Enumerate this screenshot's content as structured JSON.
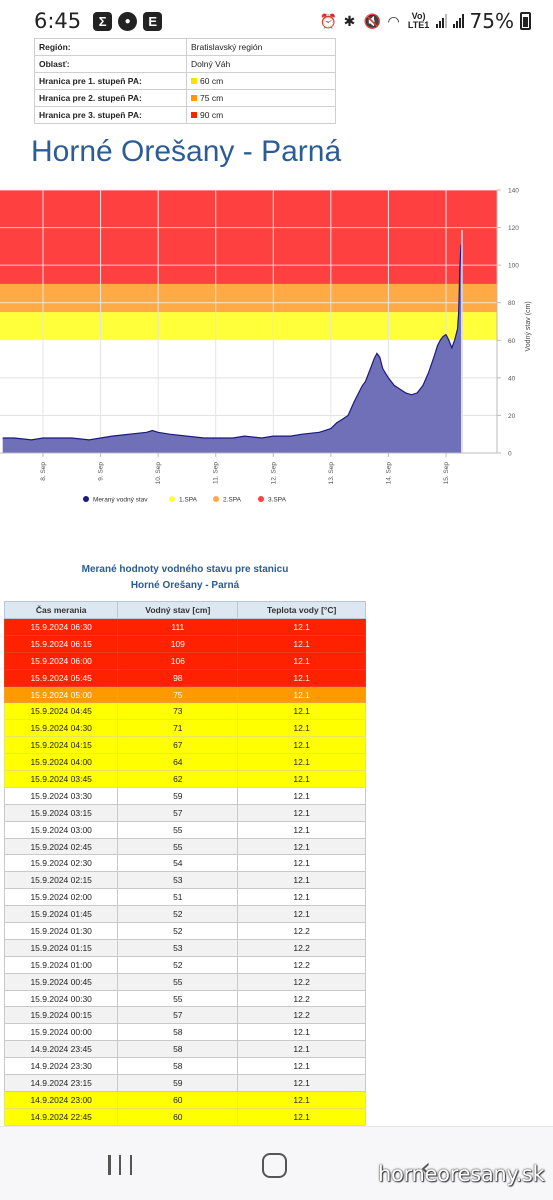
{
  "status_bar": {
    "time": "6:45",
    "notification_icons": [
      "Σ",
      "💬",
      "E"
    ],
    "network_label": "Vo) LTE1",
    "battery_percent": "75%"
  },
  "info_table": [
    {
      "label": "Región:",
      "value": "Bratislavský región",
      "swatch": ""
    },
    {
      "label": "Oblasť:",
      "value": "Dolný Váh",
      "swatch": ""
    },
    {
      "label": "Hranica pre 1. stupeň PA:",
      "value": "60 cm",
      "swatch": "#ffe000"
    },
    {
      "label": "Hranica pre 2. stupeň PA:",
      "value": "75 cm",
      "swatch": "#ff9900"
    },
    {
      "label": "Hranica pre 3. stupeň PA:",
      "value": "90 cm",
      "swatch": "#ff2200"
    }
  ],
  "station_title": "Horné Orešany - Parná",
  "chart_data": {
    "type": "area",
    "ylabel": "Vodný stav (cm)",
    "ylim": [
      0,
      140
    ],
    "yticks": [
      0,
      20,
      40,
      60,
      80,
      100,
      120,
      140
    ],
    "xticks": [
      "8. Sep",
      "9. Sep",
      "10. Sep",
      "11. Sep",
      "12. Sep",
      "13. Sep",
      "14. Sep",
      "15. Sep"
    ],
    "bands": [
      {
        "name": "1.SPA",
        "from": 60,
        "to": 75,
        "color": "#ffff3a"
      },
      {
        "name": "2.SPA",
        "from": 75,
        "to": 90,
        "color": "#ffaa44"
      },
      {
        "name": "3.SPA",
        "from": 90,
        "to": 140,
        "color": "#ff4040"
      }
    ],
    "series": [
      {
        "name": "Meraný vodný stav",
        "color": "#1a1a80",
        "fill": "#7070b8",
        "x": [
          7.3,
          7.5,
          7.8,
          8.0,
          8.3,
          8.5,
          8.8,
          9.0,
          9.2,
          9.5,
          9.8,
          9.9,
          10.0,
          10.2,
          10.5,
          10.8,
          11.0,
          11.3,
          11.5,
          11.8,
          12.0,
          12.3,
          12.5,
          12.8,
          13.0,
          13.1,
          13.2,
          13.3,
          13.4,
          13.5,
          13.55,
          13.6,
          13.65,
          13.7,
          13.75,
          13.8,
          13.85,
          13.9,
          14.0,
          14.1,
          14.2,
          14.3,
          14.4,
          14.5,
          14.6,
          14.7,
          14.8,
          14.85,
          14.9,
          14.95,
          15.0,
          15.05,
          15.1,
          15.15,
          15.2,
          15.22,
          15.24,
          15.26
        ],
        "values": [
          8,
          8,
          7,
          8,
          8,
          8,
          7,
          8,
          9,
          10,
          11,
          12,
          11,
          10,
          9,
          8,
          8,
          8,
          9,
          8,
          9,
          9,
          10,
          11,
          13,
          16,
          18,
          20,
          27,
          33,
          36,
          38,
          42,
          46,
          50,
          53,
          51,
          45,
          40,
          36,
          34,
          32,
          31,
          32,
          36,
          43,
          52,
          57,
          60,
          62,
          63,
          60,
          56,
          60,
          66,
          75,
          98,
          111
        ]
      }
    ],
    "legend": [
      "Meraný vodný stav",
      "1.SPA",
      "2.SPA",
      "3.SPA"
    ]
  },
  "measured_table": {
    "title_line1": "Merané hodnoty vodného stavu pre stanicu",
    "title_line2": "Horné Orešany - Parná",
    "headers": [
      "Čas merania",
      "Vodný stav [cm]",
      "Teplota vody [°C]"
    ],
    "rows": [
      {
        "time": "15.9.2024 06:30",
        "level": "111",
        "temp": "12.1",
        "status": "lvl3"
      },
      {
        "time": "15.9.2024 06:15",
        "level": "109",
        "temp": "12.1",
        "status": "lvl3"
      },
      {
        "time": "15.9.2024 06:00",
        "level": "106",
        "temp": "12.1",
        "status": "lvl3"
      },
      {
        "time": "15.9.2024 05:45",
        "level": "98",
        "temp": "12.1",
        "status": "lvl3"
      },
      {
        "time": "15.9.2024 05:00",
        "level": "75",
        "temp": "12.1",
        "status": "lvl2"
      },
      {
        "time": "15.9.2024 04:45",
        "level": "73",
        "temp": "12.1",
        "status": "lvl1"
      },
      {
        "time": "15.9.2024 04:30",
        "level": "71",
        "temp": "12.1",
        "status": "lvl1"
      },
      {
        "time": "15.9.2024 04:15",
        "level": "67",
        "temp": "12.1",
        "status": "lvl1"
      },
      {
        "time": "15.9.2024 04:00",
        "level": "64",
        "temp": "12.1",
        "status": "lvl1"
      },
      {
        "time": "15.9.2024 03:45",
        "level": "62",
        "temp": "12.1",
        "status": "lvl1"
      },
      {
        "time": "15.9.2024 03:30",
        "level": "59",
        "temp": "12.1",
        "status": "lvl0"
      },
      {
        "time": "15.9.2024 03:15",
        "level": "57",
        "temp": "12.1",
        "status": "lvl0"
      },
      {
        "time": "15.9.2024 03:00",
        "level": "55",
        "temp": "12.1",
        "status": "lvl0"
      },
      {
        "time": "15.9.2024 02:45",
        "level": "55",
        "temp": "12.1",
        "status": "lvl0"
      },
      {
        "time": "15.9.2024 02:30",
        "level": "54",
        "temp": "12.1",
        "status": "lvl0"
      },
      {
        "time": "15.9.2024 02:15",
        "level": "53",
        "temp": "12.1",
        "status": "lvl0"
      },
      {
        "time": "15.9.2024 02:00",
        "level": "51",
        "temp": "12.1",
        "status": "lvl0"
      },
      {
        "time": "15.9.2024 01:45",
        "level": "52",
        "temp": "12.1",
        "status": "lvl0"
      },
      {
        "time": "15.9.2024 01:30",
        "level": "52",
        "temp": "12.2",
        "status": "lvl0"
      },
      {
        "time": "15.9.2024 01:15",
        "level": "53",
        "temp": "12.2",
        "status": "lvl0"
      },
      {
        "time": "15.9.2024 01:00",
        "level": "52",
        "temp": "12.2",
        "status": "lvl0"
      },
      {
        "time": "15.9.2024 00:45",
        "level": "55",
        "temp": "12.2",
        "status": "lvl0"
      },
      {
        "time": "15.9.2024 00:30",
        "level": "55",
        "temp": "12.2",
        "status": "lvl0"
      },
      {
        "time": "15.9.2024 00:15",
        "level": "57",
        "temp": "12.2",
        "status": "lvl0"
      },
      {
        "time": "15.9.2024 00:00",
        "level": "58",
        "temp": "12.1",
        "status": "lvl0"
      },
      {
        "time": "14.9.2024 23:45",
        "level": "58",
        "temp": "12.1",
        "status": "lvl0"
      },
      {
        "time": "14.9.2024 23:30",
        "level": "58",
        "temp": "12.1",
        "status": "lvl0"
      },
      {
        "time": "14.9.2024 23:15",
        "level": "59",
        "temp": "12.1",
        "status": "lvl0"
      },
      {
        "time": "14.9.2024 23:00",
        "level": "60",
        "temp": "12.1",
        "status": "lvl1"
      },
      {
        "time": "14.9.2024 22:45",
        "level": "60",
        "temp": "12.1",
        "status": "lvl1"
      }
    ]
  },
  "watermark": "horneoresany.sk",
  "colors": {
    "title_blue": "#2b5c93",
    "level3": "#ff2200",
    "level2": "#ff9900",
    "level1": "#ffff00"
  }
}
